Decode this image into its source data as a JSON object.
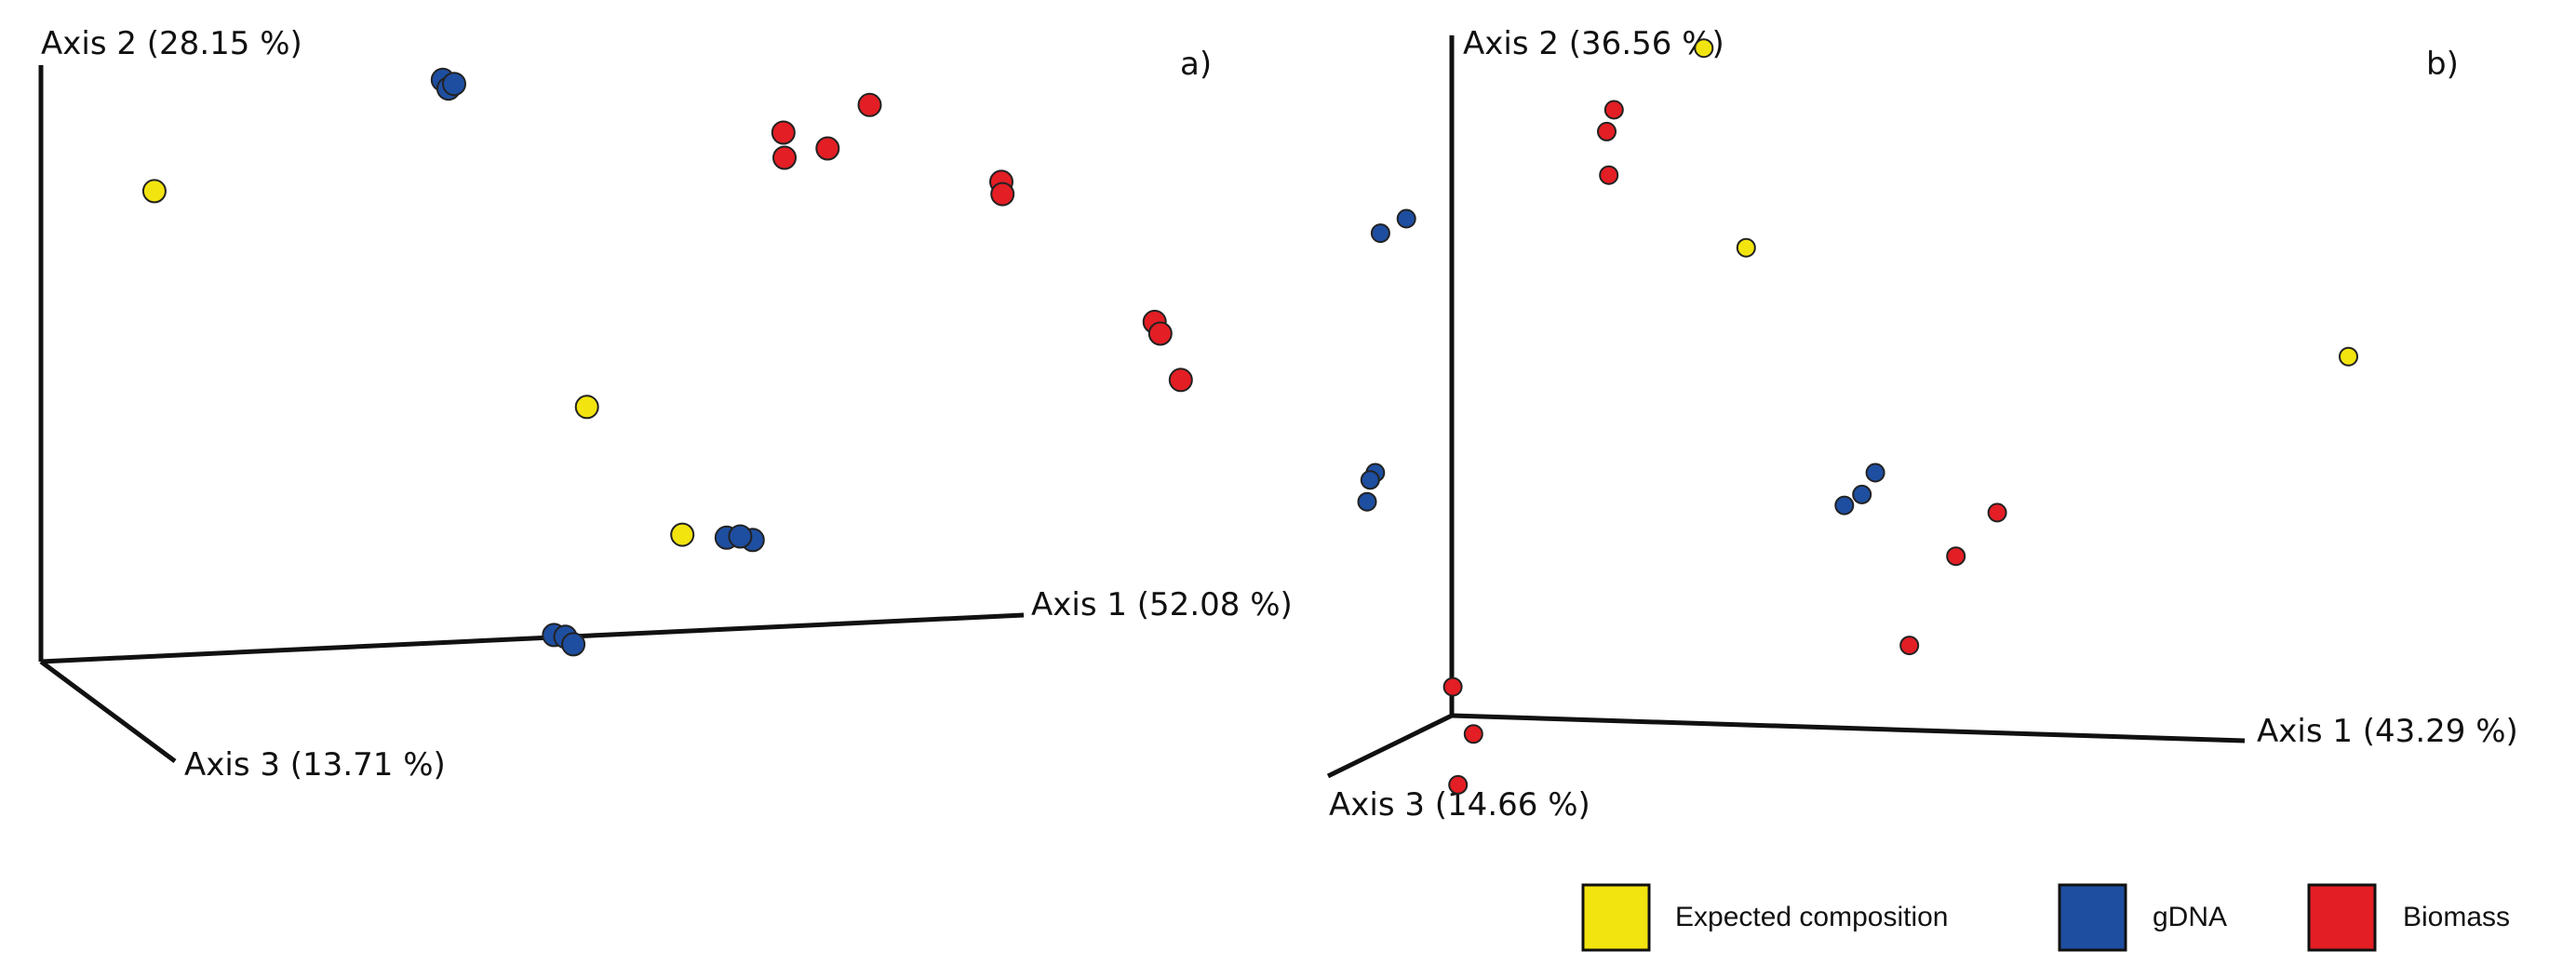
{
  "colors": {
    "expected": "#F2E40E",
    "gdna": "#1E4EA0",
    "biomass": "#E31E24",
    "axis": "#111111"
  },
  "legend": {
    "placement": "bottom-right",
    "items": [
      {
        "key": "expected",
        "label": "Expected composition"
      },
      {
        "key": "gdna",
        "label": "gDNA"
      },
      {
        "key": "biomass",
        "label": "Biomass"
      }
    ]
  },
  "chart_data": [
    {
      "type": "scatter",
      "panel_label": "a)",
      "axes": {
        "axis1": "Axis 1 (52.08 %)",
        "axis2": "Axis 2 (28.15 %)",
        "axis3": "Axis 3 (13.71 %)"
      },
      "series": [
        {
          "name": "Expected composition",
          "key": "expected",
          "points": [
            [
              0.054,
              0.785
            ],
            [
              0.435,
              0.417
            ],
            [
              0.519,
              0.199
            ]
          ]
        },
        {
          "name": "gDNA",
          "key": "gdna",
          "points": [
            [
              0.308,
              0.975
            ],
            [
              0.313,
              0.96
            ],
            [
              0.318,
              0.968
            ],
            [
              0.558,
              0.194
            ],
            [
              0.581,
              0.19
            ],
            [
              0.57,
              0.196
            ],
            [
              0.406,
              0.028
            ],
            [
              0.416,
              0.025
            ],
            [
              0.423,
              0.012
            ]
          ]
        },
        {
          "name": "Biomass",
          "key": "biomass",
          "points": [
            [
              0.609,
              0.842
            ],
            [
              0.647,
              0.858
            ],
            [
              0.608,
              0.885
            ],
            [
              0.684,
              0.932
            ],
            [
              0.8,
              0.801
            ],
            [
              0.801,
              0.78
            ],
            [
              0.935,
              0.562
            ],
            [
              0.94,
              0.542
            ],
            [
              0.958,
              0.463
            ]
          ]
        }
      ]
    },
    {
      "type": "scatter",
      "panel_label": "b)",
      "axes": {
        "axis1": "Axis 1 (43.29 %)",
        "axis2": "Axis 2 (36.56 %)",
        "axis3": "Axis 3 (14.66 %)"
      },
      "series": [
        {
          "name": "Expected composition",
          "key": "expected",
          "points": [
            [
              0.253,
              0.985
            ],
            [
              0.294,
              0.71
            ],
            [
              0.877,
              0.56
            ]
          ]
        },
        {
          "name": "gDNA",
          "key": "gdna",
          "points": [
            [
              -0.06,
              0.73
            ],
            [
              -0.035,
              0.75
            ],
            [
              -0.065,
              0.4
            ],
            [
              -0.073,
              0.36
            ],
            [
              -0.07,
              0.39
            ],
            [
              0.406,
              0.37
            ],
            [
              0.389,
              0.355
            ],
            [
              0.419,
              0.4
            ]
          ]
        },
        {
          "name": "Biomass",
          "key": "biomass",
          "points": [
            [
              0.166,
              0.9
            ],
            [
              0.159,
              0.87
            ],
            [
              0.161,
              0.81
            ],
            [
              0.537,
              0.345
            ],
            [
              0.497,
              0.285
            ],
            [
              0.452,
              0.162
            ],
            [
              0.01,
              0.105
            ],
            [
              0.03,
              0.04
            ],
            [
              0.015,
              -0.03
            ]
          ]
        }
      ]
    }
  ]
}
